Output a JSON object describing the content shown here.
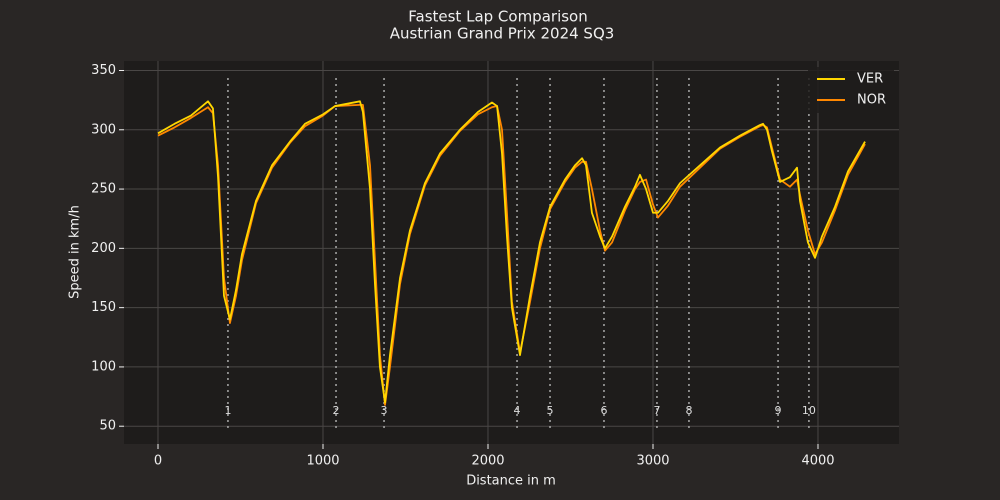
{
  "chart_data": {
    "type": "line",
    "title": "Fastest Lap Comparison",
    "subtitle": "Austrian Grand Prix 2024 SQ3",
    "x_label": "Distance in m",
    "y_label": "Speed in km/h",
    "x": [
      0,
      100,
      200,
      303,
      333,
      364,
      400,
      436,
      473,
      509,
      594,
      691,
      800,
      891,
      1000,
      1073,
      1224,
      1242,
      1285,
      1315,
      1345,
      1376,
      1406,
      1467,
      1527,
      1618,
      1709,
      1830,
      1939,
      2024,
      2055,
      2085,
      2115,
      2145,
      2194,
      2255,
      2315,
      2376,
      2467,
      2527,
      2570,
      2594,
      2630,
      2679,
      2709,
      2752,
      2830,
      2891,
      2921,
      2958,
      3000,
      3030,
      3091,
      3164,
      3285,
      3406,
      3527,
      3648,
      3667,
      3691,
      3721,
      3770,
      3830,
      3873,
      3891,
      3939,
      3982,
      4024,
      4103,
      4182,
      4285
    ],
    "series": [
      {
        "name": "VER",
        "color": "#ffd700",
        "values": [
          297,
          305,
          312,
          324,
          318,
          260,
          160,
          140,
          165,
          195,
          240,
          270,
          290,
          305,
          313,
          320,
          324,
          315,
          250,
          170,
          100,
          70,
          110,
          175,
          215,
          255,
          280,
          300,
          315,
          323,
          320,
          280,
          210,
          150,
          110,
          160,
          205,
          235,
          258,
          270,
          276,
          270,
          230,
          210,
          200,
          210,
          235,
          252,
          262,
          250,
          230,
          230,
          240,
          255,
          270,
          285,
          295,
          304,
          305,
          300,
          282,
          256,
          260,
          268,
          240,
          205,
          192,
          210,
          235,
          265,
          290
        ]
      },
      {
        "name": "NOR",
        "color": "#ff8700",
        "values": [
          295,
          302,
          310,
          319,
          314,
          270,
          175,
          137,
          160,
          190,
          238,
          268,
          289,
          303,
          312,
          320,
          321,
          321,
          270,
          190,
          110,
          68,
          100,
          170,
          212,
          253,
          278,
          299,
          313,
          319,
          320,
          300,
          230,
          155,
          112,
          155,
          200,
          233,
          256,
          268,
          273,
          273,
          250,
          215,
          198,
          205,
          232,
          250,
          256,
          258,
          237,
          226,
          236,
          252,
          268,
          284,
          294,
          303,
          304,
          302,
          285,
          258,
          252,
          258,
          245,
          215,
          195,
          205,
          232,
          262,
          288
        ]
      }
    ],
    "corners": [
      {
        "label": "1",
        "distance": 424
      },
      {
        "label": "2",
        "distance": 1079
      },
      {
        "label": "3",
        "distance": 1370
      },
      {
        "label": "4",
        "distance": 2176
      },
      {
        "label": "5",
        "distance": 2376
      },
      {
        "label": "6",
        "distance": 2703
      },
      {
        "label": "7",
        "distance": 3024
      },
      {
        "label": "8",
        "distance": 3218
      },
      {
        "label": "9",
        "distance": 3758
      },
      {
        "label": "10",
        "distance": 3945
      }
    ],
    "xlim": [
      -206,
      4491
    ],
    "ylim": [
      35,
      358
    ],
    "xticks": [
      0,
      1000,
      2000,
      3000,
      4000
    ],
    "yticks": [
      50,
      100,
      150,
      200,
      250,
      300,
      350
    ],
    "grid": true,
    "legend": "upper right"
  }
}
